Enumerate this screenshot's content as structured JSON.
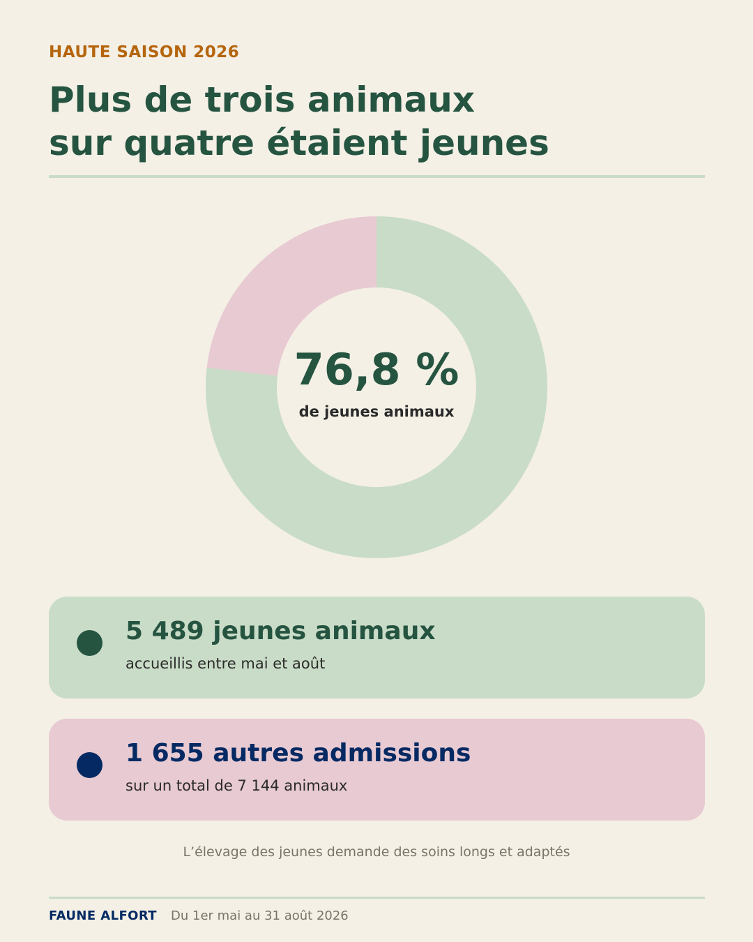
{
  "header": {
    "eyebrow": "HAUTE SAISON 2026",
    "title_line1": "Plus de trois animaux",
    "title_line2": "sur quatre étaient jeunes"
  },
  "chart_data": {
    "type": "pie",
    "categories": [
      "jeunes animaux",
      "autres admissions"
    ],
    "values": [
      5489,
      1655
    ],
    "colors": [
      "#c9dcc7",
      "#e8cad2"
    ],
    "center_value": "76,8 %",
    "center_label": "de jeunes animaux"
  },
  "cards": [
    {
      "headline": "5 489 jeunes animaux",
      "sub": "accueillis entre mai et août",
      "dot_color": "#255441"
    },
    {
      "headline": "1 655 autres admissions",
      "sub": "sur un total de 7 144 animaux",
      "dot_color": "#052a63"
    }
  ],
  "note": "L’élevage des jeunes demande des soins longs et adaptés",
  "footer": {
    "brand": "FAUNE ALFORT",
    "period": "Du 1er mai au 31 août 2026"
  }
}
